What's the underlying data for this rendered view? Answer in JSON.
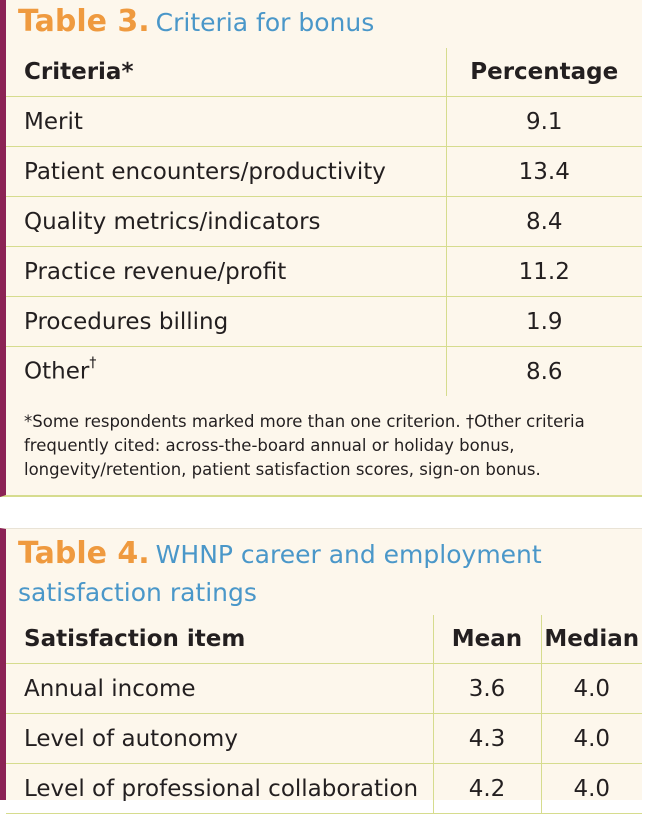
{
  "table3": {
    "number": "Table 3.",
    "title": "Criteria for bonus",
    "headers": {
      "criteria": "Criteria*",
      "percentage": "Percentage"
    },
    "rows": [
      {
        "criteria": "Merit",
        "percentage": "9.1"
      },
      {
        "criteria": "Patient encounters/productivity",
        "percentage": "13.4"
      },
      {
        "criteria": "Quality metrics/indicators",
        "percentage": "8.4"
      },
      {
        "criteria": "Practice revenue/profit",
        "percentage": "11.2"
      },
      {
        "criteria": "Procedures billing",
        "percentage": "1.9"
      },
      {
        "criteria": "Other",
        "sup": "†",
        "percentage": "8.6"
      }
    ],
    "footnote": "*Some respondents marked more than one criterion. †Other criteria frequently cited: across-the-board annual or holiday bonus, longevity/retention, patient satisfaction scores, sign-on bonus."
  },
  "table4": {
    "number": "Table 4.",
    "title": "WHNP career and employment satisfaction ratings",
    "headers": {
      "item": "Satisfaction item",
      "mean": "Mean",
      "median": "Median"
    },
    "rows": [
      {
        "item": "Annual income",
        "mean": "3.6",
        "median": "4.0"
      },
      {
        "item": "Level of autonomy",
        "mean": "4.3",
        "median": "4.0"
      },
      {
        "item": "Level of professional collaboration",
        "mean": "4.2",
        "median": "4.0"
      }
    ]
  },
  "colors": {
    "accent_border": "#8c2256",
    "title_blue": "#4a97c9",
    "number_orange": "#ef9a3f",
    "rule_green": "#d6dc8e",
    "panel_bg": "#fdf7ec"
  }
}
